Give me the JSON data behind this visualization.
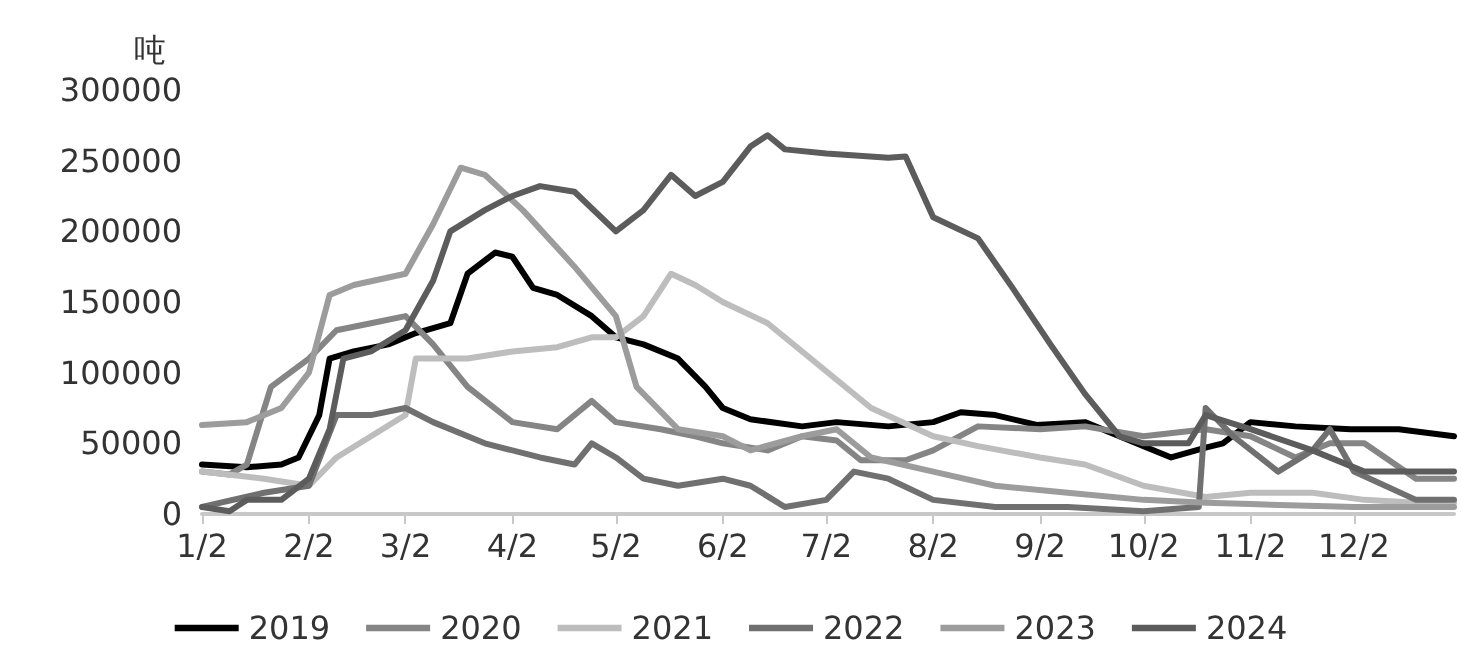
{
  "chart_data": {
    "type": "line",
    "ylabel": "吨",
    "ylim": [
      0,
      300000
    ],
    "yticks": [
      0,
      50000,
      100000,
      150000,
      200000,
      250000,
      300000
    ],
    "xlim": [
      "--01-02",
      "--12-31"
    ],
    "xticks": [
      {
        "value": "--01-02",
        "label": "1/2"
      },
      {
        "value": "--02-02",
        "label": "2/2"
      },
      {
        "value": "--03-02",
        "label": "3/2"
      },
      {
        "value": "--04-02",
        "label": "4/2"
      },
      {
        "value": "--05-02",
        "label": "5/2"
      },
      {
        "value": "--06-02",
        "label": "6/2"
      },
      {
        "value": "--07-02",
        "label": "7/2"
      },
      {
        "value": "--08-02",
        "label": "8/2"
      },
      {
        "value": "--09-02",
        "label": "9/2"
      },
      {
        "value": "--10-02",
        "label": "10/2"
      },
      {
        "value": "--11-02",
        "label": "11/2"
      },
      {
        "value": "--12-02",
        "label": "12/2"
      }
    ],
    "grid": false,
    "legend": "bottom",
    "marker": "none",
    "line_style": "solid",
    "series": [
      {
        "name": "2019",
        "color": "#000000",
        "x": [
          "--01-02",
          "--01-15",
          "--01-25",
          "--01-30",
          "--02-05",
          "--02-08",
          "--02-15",
          "--02-25",
          "--03-05",
          "--03-15",
          "--03-20",
          "--03-28",
          "--04-02",
          "--04-08",
          "--04-15",
          "--04-25",
          "--05-02",
          "--05-10",
          "--05-20",
          "--05-28",
          "--06-02",
          "--06-10",
          "--06-25",
          "--07-05",
          "--07-20",
          "--08-02",
          "--08-10",
          "--08-20",
          "--09-01",
          "--09-15",
          "--09-25",
          "--10-02",
          "--10-10",
          "--10-20",
          "--10-25",
          "--11-02",
          "--11-15",
          "--12-01",
          "--12-15",
          "--12-31"
        ],
        "values": [
          35000,
          33000,
          35000,
          40000,
          70000,
          110000,
          115000,
          120000,
          128000,
          135000,
          170000,
          185000,
          182000,
          160000,
          155000,
          140000,
          125000,
          120000,
          110000,
          90000,
          75000,
          67000,
          62000,
          65000,
          62000,
          65000,
          72000,
          70000,
          63000,
          65000,
          55000,
          48000,
          40000,
          47000,
          50000,
          65000,
          62000,
          60000,
          60000,
          55000
        ]
      },
      {
        "name": "2020",
        "color": "#858585",
        "x": [
          "--01-02",
          "--01-10",
          "--01-15",
          "--01-22",
          "--02-02",
          "--02-10",
          "--02-20",
          "--03-02",
          "--03-10",
          "--03-20",
          "--04-02",
          "--04-15",
          "--04-25",
          "--05-02",
          "--05-15",
          "--05-25",
          "--06-02",
          "--06-15",
          "--06-25",
          "--07-05",
          "--07-12",
          "--07-25",
          "--08-02",
          "--08-15",
          "--09-02",
          "--09-15",
          "--10-02",
          "--10-20",
          "--11-02",
          "--11-15",
          "--11-25",
          "--12-05",
          "--12-20",
          "--12-31"
        ],
        "values": [
          30000,
          28000,
          35000,
          90000,
          110000,
          130000,
          135000,
          140000,
          120000,
          90000,
          65000,
          60000,
          80000,
          65000,
          60000,
          55000,
          50000,
          45000,
          55000,
          52000,
          38000,
          38000,
          45000,
          62000,
          60000,
          62000,
          55000,
          60000,
          55000,
          40000,
          50000,
          50000,
          25000,
          25000
        ]
      },
      {
        "name": "2021",
        "color": "#bdbdbd",
        "x": [
          "--01-02",
          "--01-20",
          "--02-02",
          "--02-10",
          "--02-20",
          "--03-02",
          "--03-05",
          "--03-20",
          "--04-02",
          "--04-15",
          "--04-25",
          "--05-02",
          "--05-10",
          "--05-18",
          "--05-25",
          "--06-02",
          "--06-15",
          "--06-25",
          "--07-05",
          "--07-15",
          "--08-02",
          "--08-15",
          "--09-02",
          "--09-15",
          "--10-02",
          "--10-20",
          "--11-02",
          "--11-20",
          "--12-05",
          "--12-20",
          "--12-31"
        ],
        "values": [
          30000,
          25000,
          20000,
          40000,
          55000,
          70000,
          110000,
          110000,
          115000,
          118000,
          125000,
          125000,
          140000,
          170000,
          162000,
          150000,
          135000,
          115000,
          95000,
          75000,
          55000,
          48000,
          40000,
          35000,
          20000,
          12000,
          15000,
          15000,
          10000,
          8000,
          8000
        ]
      },
      {
        "name": "2022",
        "color": "#707070",
        "x": [
          "--01-02",
          "--01-20",
          "--02-02",
          "--02-10",
          "--02-20",
          "--03-02",
          "--03-10",
          "--03-25",
          "--04-10",
          "--04-20",
          "--04-25",
          "--05-02",
          "--05-10",
          "--05-20",
          "--06-02",
          "--06-10",
          "--06-20",
          "--07-02",
          "--07-10",
          "--07-20",
          "--08-02",
          "--08-20",
          "--09-10",
          "--10-02",
          "--10-18",
          "--10-20",
          "--10-28",
          "--11-10",
          "--11-20",
          "--11-25",
          "--12-02",
          "--12-20",
          "--12-31"
        ],
        "values": [
          5000,
          15000,
          20000,
          70000,
          70000,
          75000,
          65000,
          50000,
          40000,
          35000,
          50000,
          40000,
          25000,
          20000,
          25000,
          20000,
          5000,
          10000,
          30000,
          25000,
          10000,
          5000,
          5000,
          2000,
          5000,
          75000,
          55000,
          30000,
          45000,
          60000,
          30000,
          10000,
          10000
        ]
      },
      {
        "name": "2023",
        "color": "#9c9c9c",
        "x": [
          "--01-02",
          "--01-15",
          "--01-25",
          "--02-02",
          "--02-08",
          "--02-15",
          "--03-02",
          "--03-10",
          "--03-18",
          "--03-25",
          "--04-05",
          "--04-20",
          "--05-02",
          "--05-08",
          "--05-20",
          "--06-02",
          "--06-10",
          "--06-25",
          "--07-05",
          "--07-15",
          "--08-02",
          "--08-20",
          "--09-10",
          "--10-02",
          "--10-20",
          "--11-02",
          "--12-02",
          "--12-31"
        ],
        "values": [
          63000,
          65000,
          75000,
          100000,
          155000,
          162000,
          170000,
          205000,
          245000,
          240000,
          215000,
          175000,
          140000,
          90000,
          60000,
          55000,
          45000,
          55000,
          60000,
          40000,
          30000,
          20000,
          15000,
          10000,
          8000,
          7000,
          5000,
          5000
        ]
      },
      {
        "name": "2024",
        "color": "#5c5c5c",
        "x": [
          "--01-02",
          "--01-10",
          "--01-15",
          "--01-25",
          "--02-02",
          "--02-08",
          "--02-12",
          "--02-20",
          "--03-02",
          "--03-10",
          "--03-15",
          "--03-25",
          "--04-02",
          "--04-10",
          "--04-20",
          "--05-02",
          "--05-10",
          "--05-18",
          "--05-25",
          "--06-02",
          "--06-10",
          "--06-15",
          "--06-20",
          "--07-02",
          "--07-20",
          "--07-25",
          "--08-02",
          "--08-15",
          "--08-25",
          "--09-05",
          "--09-15",
          "--09-25",
          "--10-02",
          "--10-15",
          "--10-20",
          "--11-02",
          "--11-20",
          "--12-05",
          "--12-20",
          "--12-31"
        ],
        "values": [
          5000,
          2000,
          10000,
          10000,
          25000,
          60000,
          110000,
          115000,
          130000,
          165000,
          200000,
          215000,
          225000,
          232000,
          228000,
          200000,
          215000,
          240000,
          225000,
          235000,
          260000,
          268000,
          258000,
          255000,
          252000,
          253000,
          210000,
          195000,
          160000,
          120000,
          85000,
          55000,
          50000,
          50000,
          70000,
          60000,
          45000,
          30000,
          30000,
          30000
        ]
      }
    ]
  }
}
